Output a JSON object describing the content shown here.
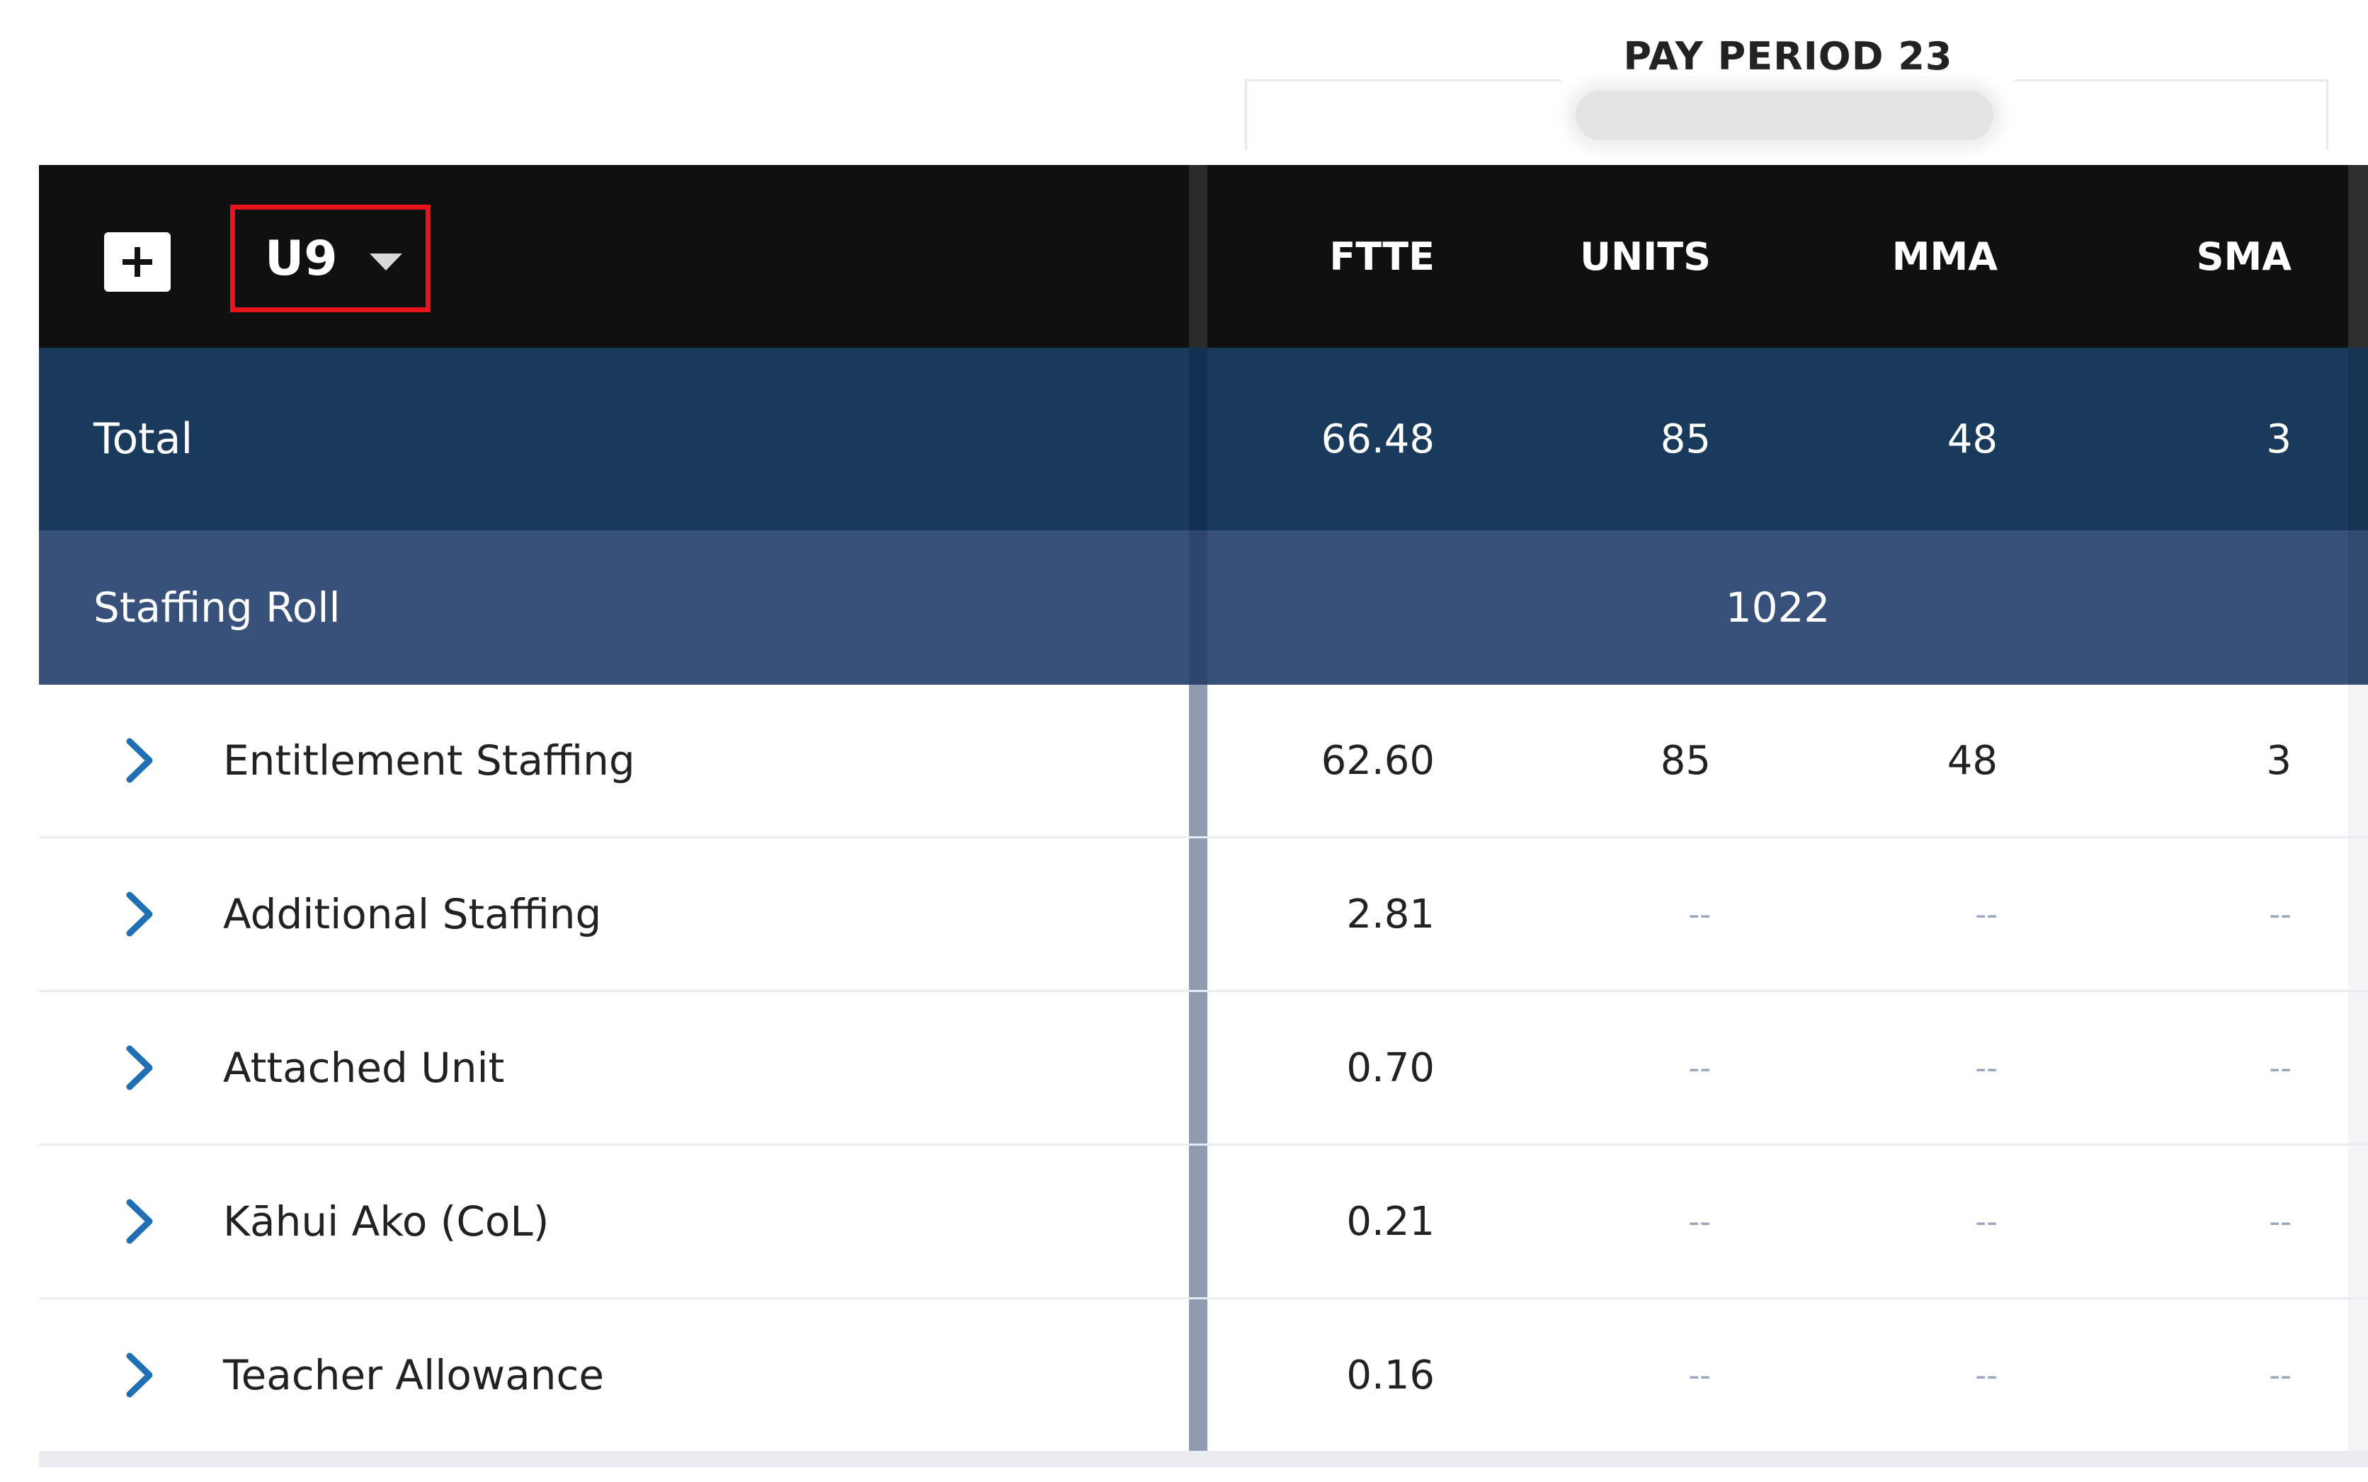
{
  "period": {
    "title": "PAY PERIOD 23"
  },
  "toolbar": {
    "add_icon": "plus-icon",
    "unit_value": "U9",
    "unit_dropdown_icon": "caret-down-icon"
  },
  "columns": [
    "FTTE",
    "UNITS",
    "MMA",
    "SMA"
  ],
  "total": {
    "label": "Total",
    "values": [
      "66.48",
      "85",
      "48",
      "3"
    ]
  },
  "staffing_roll": {
    "label": "Staffing Roll",
    "value": "1022"
  },
  "rows": [
    {
      "label": "Entitlement Staffing",
      "values": [
        "62.60",
        "85",
        "48",
        "3"
      ]
    },
    {
      "label": "Additional Staffing",
      "values": [
        "2.81",
        "--",
        "--",
        "--"
      ]
    },
    {
      "label": "Attached Unit",
      "values": [
        "0.70",
        "--",
        "--",
        "--"
      ]
    },
    {
      "label": "Kāhui Ako (CoL)",
      "values": [
        "0.21",
        "--",
        "--",
        "--"
      ]
    },
    {
      "label": "Teacher Allowance",
      "values": [
        "0.16",
        "--",
        "--",
        "--"
      ]
    }
  ],
  "colors": {
    "header_bg": "#101010",
    "total_bg": "#1a3a5c",
    "staffing_roll_bg": "#37517b",
    "highlight_border": "#e8141c",
    "chevron": "#1f6fb2"
  }
}
